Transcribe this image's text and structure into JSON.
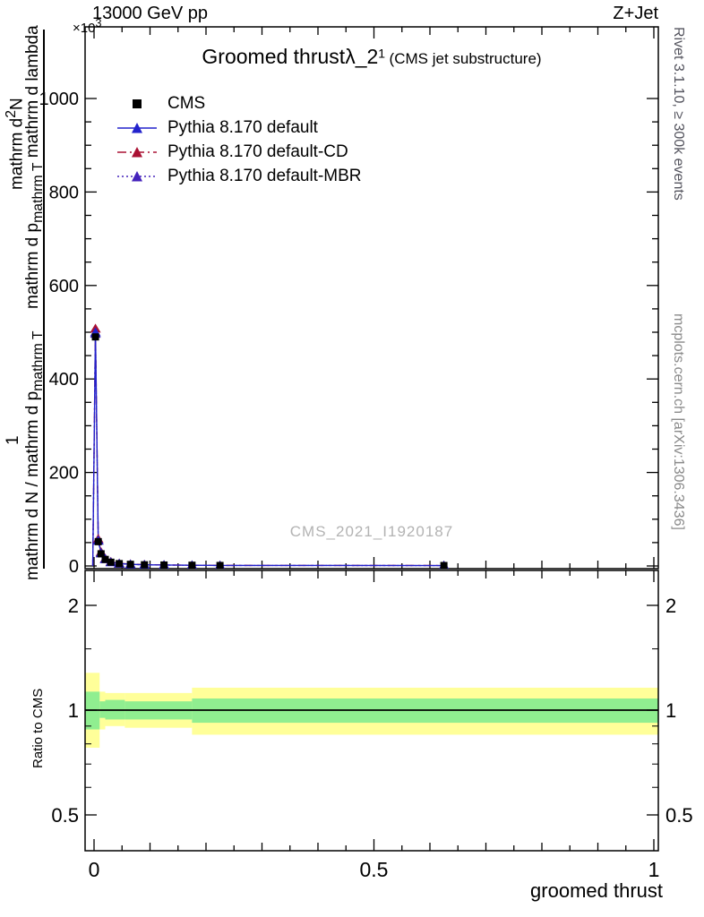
{
  "header": {
    "energy": "13000 GeV pp",
    "process": "Z+Jet",
    "scale_base": "×10",
    "scale_exp": "3"
  },
  "title": {
    "main": "Groomed thrust",
    "lambda": "λ_2",
    "lambda_sup": "1",
    "suffix": "(CMS jet substructure)"
  },
  "legend": [
    {
      "label": "CMS",
      "color": "#000000",
      "marker": "square",
      "line": "none"
    },
    {
      "label": "Pythia 8.170 default",
      "color": "#2222cc",
      "marker": "triangle",
      "line": "solid"
    },
    {
      "label": "Pythia 8.170 default-CD",
      "color": "#aa1133",
      "marker": "triangle",
      "line": "dashdot"
    },
    {
      "label": "Pythia 8.170 default-MBR",
      "color": "#4422bb",
      "marker": "triangle",
      "line": "dotted"
    }
  ],
  "ylabel": {
    "num_d": "mathrm d",
    "num_sup": "2",
    "num_N": "N",
    "den_main": "mathrm d p",
    "den_sub": "mathrm T",
    "den_rest": " mathrm d lambda",
    "one": "1",
    "prefix_main": "mathrm d N / mathrm d p",
    "prefix_sub": "mathrm T"
  },
  "right_labels": {
    "rivet": "Rivet 3.1.10, ≥ 300k events",
    "mcplots": "mcplots.cern.ch [arXiv:1306.3436]"
  },
  "watermark": "CMS_2021_I1920187",
  "ratio_label": "Ratio to CMS",
  "x_title": "groomed thrust",
  "chart_data": {
    "type": "line",
    "title": "Groomed thrust λ_2^1 (CMS jet substructure)",
    "xlabel": "groomed thrust",
    "ylabel": "1/(dN/dp_T) d²N/(dp_T dλ)",
    "y_scale_factor": "×10³",
    "xlim": [
      0,
      1
    ],
    "ylim": [
      0,
      1050
    ],
    "grid": false,
    "legend_position": "top-left",
    "x_ticks": {
      "major": [
        0,
        0.5,
        1
      ],
      "labels": [
        "0",
        "0.5",
        "1"
      ],
      "minor_step": 0.05
    },
    "y_ticks": {
      "major": [
        0,
        200,
        400,
        600,
        800,
        1000
      ],
      "minor_step": 50
    },
    "x": [
      0.0025,
      0.0075,
      0.0125,
      0.02,
      0.03,
      0.045,
      0.065,
      0.09,
      0.125,
      0.175,
      0.225,
      0.625
    ],
    "series": [
      {
        "name": "CMS",
        "color": "#000000",
        "marker": "square",
        "line": "none",
        "values": [
          490,
          52,
          26,
          14,
          8,
          5,
          3.5,
          2.5,
          2,
          1.5,
          1,
          0.9
        ]
      },
      {
        "name": "Pythia 8.170 default",
        "color": "#2222cc",
        "marker": "triangle",
        "line": "solid",
        "values": [
          500,
          55,
          28,
          15,
          8.4,
          5.2,
          3.6,
          2.6,
          2.1,
          1.6,
          1.1,
          0.9
        ]
      },
      {
        "name": "Pythia 8.170 default-CD",
        "color": "#aa1133",
        "marker": "triangle",
        "line": "dashdot",
        "values": [
          508,
          58,
          30,
          16,
          9,
          5.6,
          3.9,
          2.8,
          2.2,
          1.7,
          1.2,
          1
        ]
      },
      {
        "name": "Pythia 8.170 default-MBR",
        "color": "#4422bb",
        "marker": "triangle",
        "line": "dotted",
        "values": [
          497,
          54,
          27,
          14.6,
          8.2,
          5.1,
          3.5,
          2.5,
          2,
          1.5,
          1.1,
          0.9
        ]
      }
    ],
    "ratio": {
      "ylabel": "Ratio to CMS",
      "scale": "log",
      "ylim": [
        0.4,
        2.5
      ],
      "ticks": [
        0.5,
        1,
        2
      ],
      "minor_ticks": [
        0.6,
        0.7,
        0.8,
        0.9,
        1.5
      ],
      "reference": 1,
      "bands": [
        {
          "name": "yellow-uncertainty",
          "color": "#ffff99",
          "segments": [
            {
              "x0": 0,
              "x1": 0.01,
              "lo": 0.78,
              "hi": 1.28
            },
            {
              "x0": 0.01,
              "x1": 0.02,
              "lo": 0.88,
              "hi": 1.13
            },
            {
              "x0": 0.02,
              "x1": 0.055,
              "lo": 0.9,
              "hi": 1.12
            },
            {
              "x0": 0.055,
              "x1": 0.175,
              "lo": 0.89,
              "hi": 1.12
            },
            {
              "x0": 0.175,
              "x1": 1.0,
              "lo": 0.85,
              "hi": 1.16
            }
          ]
        },
        {
          "name": "green-uncertainty",
          "color": "#90ee90",
          "segments": [
            {
              "x0": 0,
              "x1": 0.01,
              "lo": 0.88,
              "hi": 1.13
            },
            {
              "x0": 0.01,
              "x1": 0.02,
              "lo": 0.95,
              "hi": 1.06
            },
            {
              "x0": 0.02,
              "x1": 0.055,
              "lo": 0.94,
              "hi": 1.07
            },
            {
              "x0": 0.055,
              "x1": 0.175,
              "lo": 0.94,
              "hi": 1.06
            },
            {
              "x0": 0.175,
              "x1": 1.0,
              "lo": 0.92,
              "hi": 1.08
            }
          ]
        }
      ]
    },
    "watermark": "CMS_2021_I1920187"
  }
}
